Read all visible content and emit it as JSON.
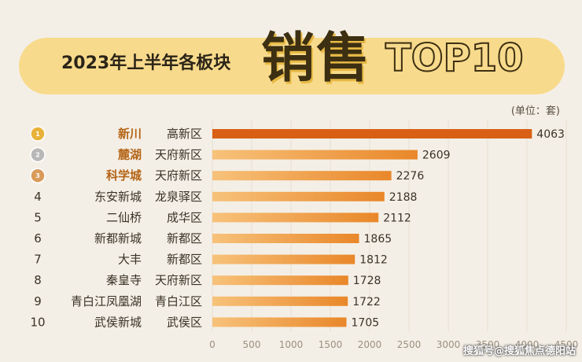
{
  "banner": {
    "subtitle": "2023年上半年各板块",
    "main": "销售",
    "top": "TOP10"
  },
  "unit": "(单位：套)",
  "footer": "搜狐号@搜狐焦点德阳站",
  "colors": {
    "bar_start": "#f7c27a",
    "bar_end": "#e9872a",
    "bar_top": "#d95f14",
    "gold": "#e8b23a",
    "silver": "#b8b8b8",
    "bronze": "#d99a5a",
    "highlight_text": "#b46416"
  },
  "chart_data": {
    "type": "bar",
    "orientation": "horizontal",
    "title": "2023年上半年各板块销售TOP10",
    "unit": "套",
    "xlim": [
      0,
      4500
    ],
    "xticks": [
      0,
      500,
      1000,
      1500,
      2000,
      2500,
      3000,
      3500,
      4000,
      4500
    ],
    "grid": true,
    "rows": [
      {
        "rank": "1",
        "name": "新川",
        "district": "高新区",
        "value": 4063,
        "medal": "gold"
      },
      {
        "rank": "2",
        "name": "麓湖",
        "district": "天府新区",
        "value": 2609,
        "medal": "silver"
      },
      {
        "rank": "3",
        "name": "科学城",
        "district": "天府新区",
        "value": 2276,
        "medal": "bronze"
      },
      {
        "rank": "4",
        "name": "东安新城",
        "district": "龙泉驿区",
        "value": 2188
      },
      {
        "rank": "5",
        "name": "二仙桥",
        "district": "成华区",
        "value": 2112
      },
      {
        "rank": "6",
        "name": "新都新城",
        "district": "新都区",
        "value": 1865
      },
      {
        "rank": "7",
        "name": "大丰",
        "district": "新都区",
        "value": 1812
      },
      {
        "rank": "8",
        "name": "秦皇寺",
        "district": "天府新区",
        "value": 1728
      },
      {
        "rank": "9",
        "name": "青白江凤凰湖",
        "district": "青白江区",
        "value": 1722
      },
      {
        "rank": "10",
        "name": "武侯新城",
        "district": "武侯区",
        "value": 1705
      }
    ]
  }
}
